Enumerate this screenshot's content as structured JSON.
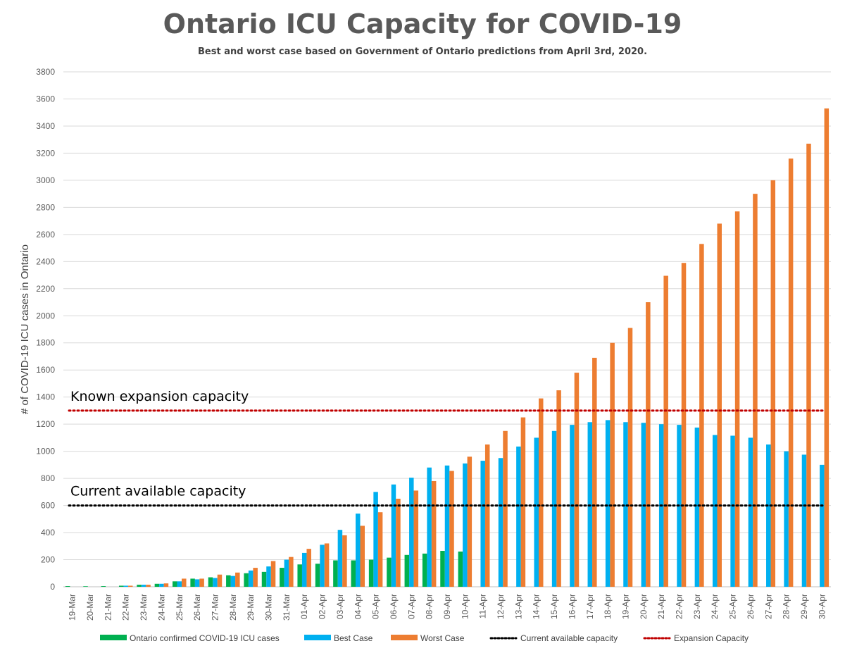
{
  "chart_data": {
    "type": "bar",
    "title": "Ontario ICU Capacity for COVID-19",
    "subtitle": "Best and worst case based on Government of Ontario predictions from April 3rd, 2020.",
    "ylabel": "# of COVID-19 ICU cases in Ontario",
    "xlabel": "",
    "ylim": [
      0,
      3800
    ],
    "yticks": [
      0,
      200,
      400,
      600,
      800,
      1000,
      1200,
      1400,
      1600,
      1800,
      2000,
      2200,
      2400,
      2600,
      2800,
      3000,
      3200,
      3400,
      3600,
      3800
    ],
    "grid": true,
    "legend": "bottom",
    "categories": [
      "19-Mar",
      "20-Mar",
      "21-Mar",
      "22-Mar",
      "23-Mar",
      "24-Mar",
      "25-Mar",
      "26-Mar",
      "27-Mar",
      "28-Mar",
      "29-Mar",
      "30-Mar",
      "31-Mar",
      "01-Apr",
      "02-Apr",
      "03-Apr",
      "04-Apr",
      "05-Apr",
      "06-Apr",
      "07-Apr",
      "08-Apr",
      "09-Apr",
      "10-Apr",
      "11-Apr",
      "12-Apr",
      "13-Apr",
      "14-Apr",
      "15-Apr",
      "16-Apr",
      "17-Apr",
      "18-Apr",
      "19-Apr",
      "20-Apr",
      "21-Apr",
      "22-Apr",
      "23-Apr",
      "24-Apr",
      "25-Apr",
      "26-Apr",
      "27-Apr",
      "28-Apr",
      "29-Apr",
      "30-Apr"
    ],
    "series": [
      {
        "name": "Ontario confirmed COVID-19 ICU cases",
        "color": "#00b050",
        "values": [
          5,
          4,
          5,
          8,
          15,
          22,
          40,
          60,
          70,
          85,
          100,
          110,
          140,
          165,
          170,
          195,
          195,
          200,
          215,
          235,
          245,
          265,
          260,
          null,
          null,
          null,
          null,
          null,
          null,
          null,
          null,
          null,
          null,
          null,
          null,
          null,
          null,
          null,
          null,
          null,
          null,
          null,
          null
        ]
      },
      {
        "name": "Best Case",
        "color": "#00b0f0",
        "values": [
          null,
          null,
          null,
          8,
          15,
          22,
          40,
          55,
          65,
          80,
          120,
          150,
          200,
          250,
          310,
          420,
          540,
          700,
          755,
          805,
          880,
          895,
          910,
          930,
          950,
          1035,
          1100,
          1150,
          1195,
          1215,
          1230,
          1215,
          1210,
          1200,
          1195,
          1175,
          1120,
          1115,
          1100,
          1050,
          1000,
          975,
          900
        ]
      },
      {
        "name": "Worst Case",
        "color": "#ed7d31",
        "values": [
          null,
          null,
          null,
          8,
          15,
          25,
          60,
          60,
          90,
          105,
          140,
          190,
          220,
          280,
          320,
          380,
          450,
          550,
          650,
          710,
          780,
          855,
          960,
          1050,
          1150,
          1250,
          1390,
          1450,
          1580,
          1690,
          1800,
          1910,
          2100,
          2295,
          2390,
          2530,
          2680,
          2770,
          2900,
          3000,
          3160,
          3270,
          3530
        ]
      }
    ],
    "reference_lines": [
      {
        "name": "Current available capacity",
        "value": 600,
        "color": "#000000",
        "label": "Current available capacity"
      },
      {
        "name": "Expansion Capacity",
        "value": 1300,
        "color": "#c00000",
        "label": "Known expansion capacity"
      }
    ]
  }
}
